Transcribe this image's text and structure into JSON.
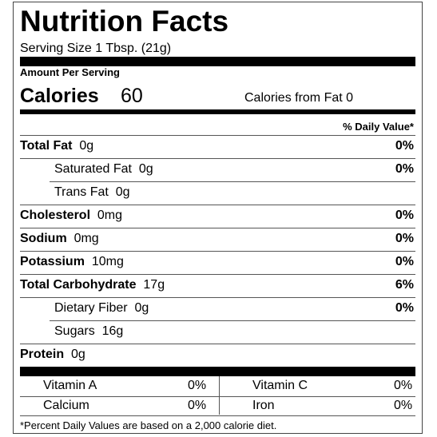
{
  "label": {
    "title": "Nutrition Facts",
    "serving_size": "Serving Size 1 Tbsp. (21g)",
    "amount_per_serving": "Amount Per Serving",
    "calories_label": "Calories",
    "calories_value": "60",
    "calories_from_fat": "Calories from Fat  0",
    "daily_value_header": "% Daily Value*",
    "nutrients": [
      {
        "name": "Total Fat",
        "amount": "0g",
        "dv": "0%",
        "bold": true,
        "indent": false
      },
      {
        "name": "Saturated Fat",
        "amount": "0g",
        "dv": "0%",
        "bold": false,
        "indent": true
      },
      {
        "name": "Trans Fat",
        "amount": "0g",
        "dv": "",
        "bold": false,
        "indent": true
      },
      {
        "name": "Cholesterol",
        "amount": "0mg",
        "dv": "0%",
        "bold": true,
        "indent": false
      },
      {
        "name": "Sodium",
        "amount": "0mg",
        "dv": "0%",
        "bold": true,
        "indent": false
      },
      {
        "name": "Potassium",
        "amount": "10mg",
        "dv": "0%",
        "bold": true,
        "indent": false
      },
      {
        "name": "Total Carbohydrate",
        "amount": "17g",
        "dv": "6%",
        "bold": true,
        "indent": false
      },
      {
        "name": "Dietary Fiber",
        "amount": "0g",
        "dv": "0%",
        "bold": false,
        "indent": true
      },
      {
        "name": "Sugars",
        "amount": "16g",
        "dv": "",
        "bold": false,
        "indent": true
      },
      {
        "name": "Protein",
        "amount": "0g",
        "dv": "",
        "bold": true,
        "indent": false
      }
    ],
    "vitamins": [
      {
        "name": "Vitamin A",
        "dv": "0%"
      },
      {
        "name": "Vitamin C",
        "dv": "0%"
      },
      {
        "name": "Calcium",
        "dv": "0%"
      },
      {
        "name": "Iron",
        "dv": "0%"
      }
    ],
    "footnote": "*Percent Daily Values are based on a 2,000 calorie diet."
  }
}
